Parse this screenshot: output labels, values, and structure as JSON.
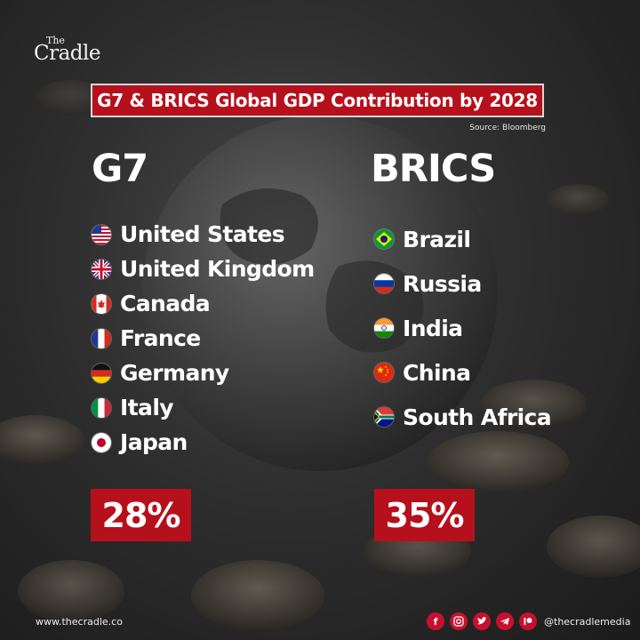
{
  "brand": {
    "logo_the": "The",
    "logo_name": "Cradle"
  },
  "title": "G7 & BRICS Global GDP Contribution by 2028",
  "source": "Source: Bloomberg",
  "g7": {
    "heading": "G7",
    "countries": [
      "United States",
      "United Kingdom",
      "Canada",
      "France",
      "Germany",
      "Italy",
      "Japan"
    ],
    "share": "28%"
  },
  "brics": {
    "heading": "BRICS",
    "countries": [
      "Brazil",
      "Russia",
      "India",
      "China",
      "South Africa"
    ],
    "share": "35%"
  },
  "footer": {
    "website": "www.thecradle.co",
    "handle": "@thecradlemedia",
    "social_icons": [
      "facebook-icon",
      "instagram-icon",
      "twitter-icon",
      "telegram-icon",
      "patreon-icon"
    ]
  },
  "colors": {
    "accent": "#b5101c",
    "background": "#2e2e2e",
    "text": "#ffffff"
  }
}
